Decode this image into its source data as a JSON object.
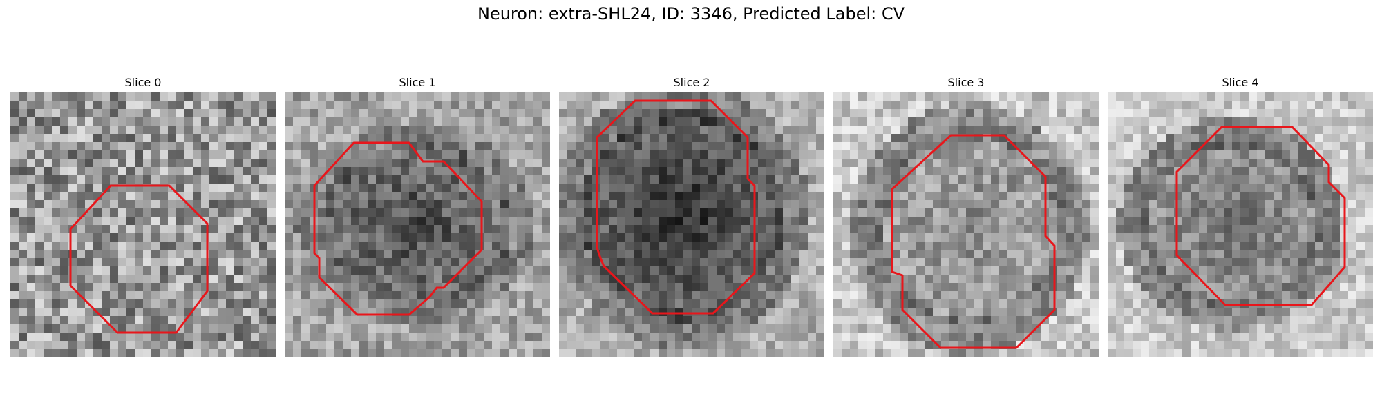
{
  "title": "Neuron: extra-SHL24, ID: 3346, Predicted Label: CV",
  "slices": [
    {
      "label": "Slice 0"
    },
    {
      "label": "Slice 1"
    },
    {
      "label": "Slice 2"
    },
    {
      "label": "Slice 3"
    },
    {
      "label": "Slice 4"
    }
  ],
  "colors": {
    "contour": "#e8161b"
  }
}
